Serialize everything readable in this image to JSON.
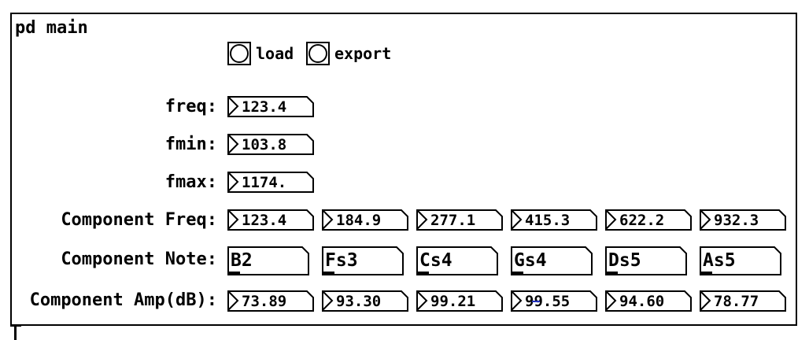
{
  "window": {
    "title": "pd main"
  },
  "buttons": [
    {
      "label": "load"
    },
    {
      "label": "export"
    }
  ],
  "params": [
    {
      "label": "freq:",
      "value": "123.4"
    },
    {
      "label": "fmin:",
      "value": "103.8"
    },
    {
      "label": "fmax:",
      "value": "1174."
    }
  ],
  "components": {
    "freq_label": "Component Freq:",
    "note_label": "Component Note:",
    "amp_label": "Component Amp(dB):",
    "freqs": [
      "123.4",
      "184.9",
      "277.1",
      "415.3",
      "622.2",
      "932.3"
    ],
    "notes": [
      "B2",
      "Fs3",
      "Cs4",
      "Gs4",
      "Ds5",
      "As5"
    ],
    "amps": [
      "73.89",
      "93.30",
      "99.21",
      "99.55",
      "94.60",
      "78.77"
    ]
  }
}
